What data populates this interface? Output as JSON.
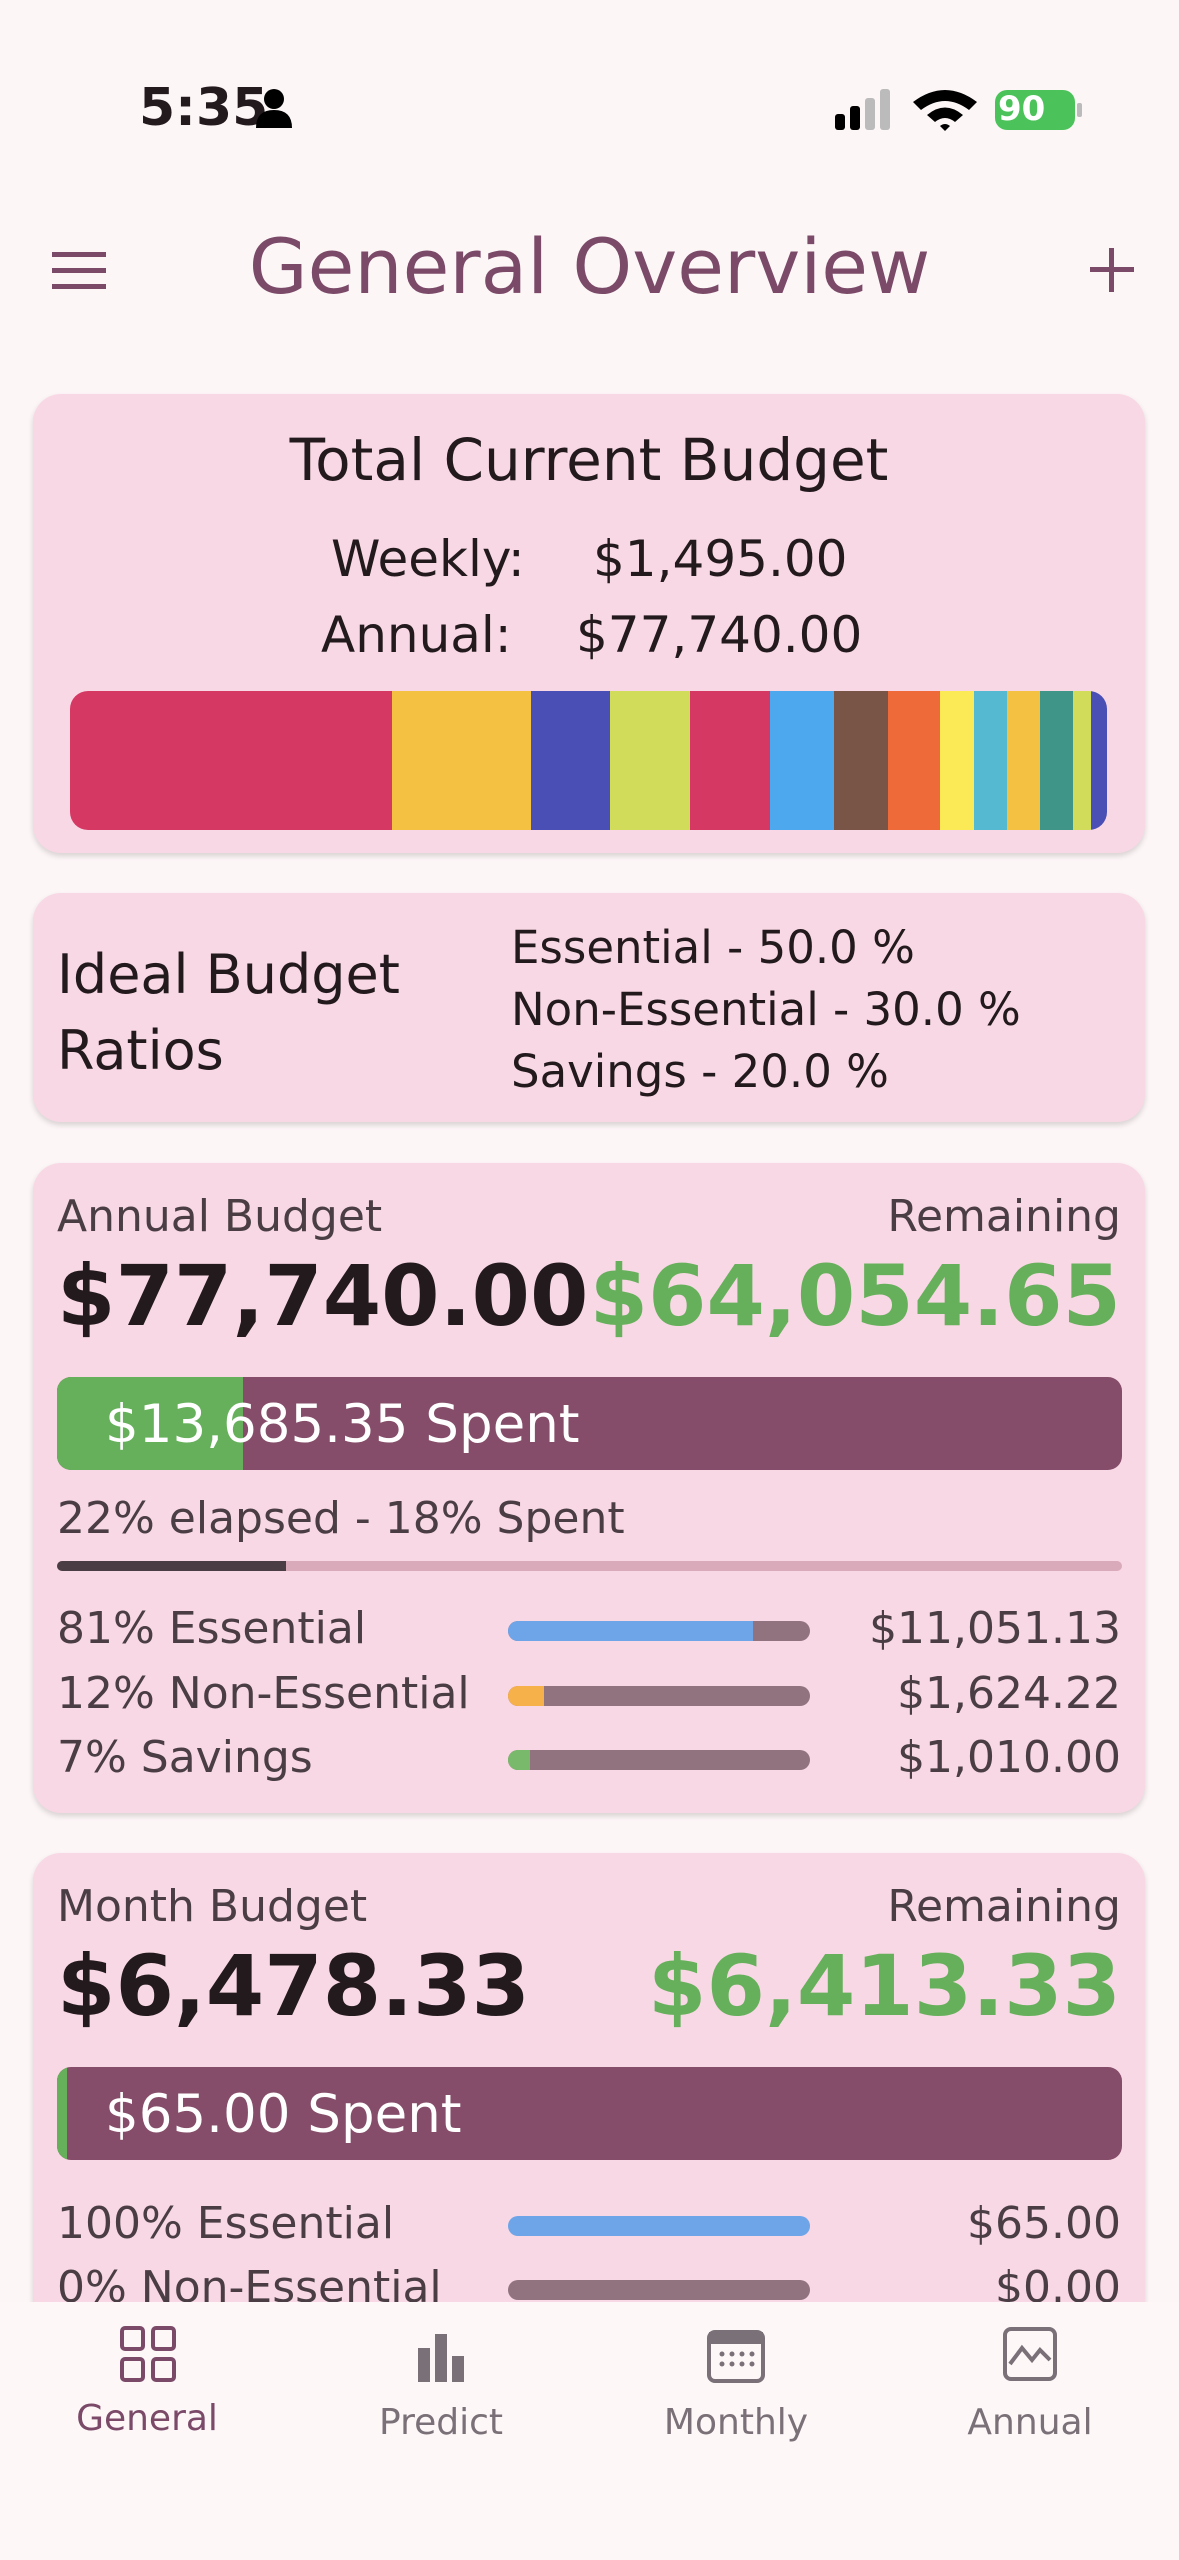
{
  "status_bar": {
    "time": "5:35",
    "battery": "90"
  },
  "app_bar": {
    "title": "General Overview"
  },
  "total_budget": {
    "title": "Total Current Budget",
    "weekly_label": "Weekly:",
    "weekly_value": "$1,495.00",
    "annual_label": "Annual:",
    "annual_value": "$77,740.00"
  },
  "ideal_ratios": {
    "title": "Ideal Budget Ratios",
    "lines": [
      "Essential - 50.0 %",
      "Non-Essential - 30.0 %",
      "Savings - 20.0 %"
    ]
  },
  "annual_budget": {
    "label": "Annual Budget",
    "amount": "$77,740.00",
    "remaining_label": "Remaining",
    "remaining": "$64,054.65",
    "spent": "$13,685.35 Spent",
    "progress_text": "22% elapsed - 18% Spent",
    "rows": [
      {
        "label": "81% Essential",
        "value": "$11,051.13"
      },
      {
        "label": "12% Non-Essential",
        "value": "$1,624.22"
      },
      {
        "label": "7% Savings",
        "value": "$1,010.00"
      }
    ]
  },
  "month_budget": {
    "label": "Month Budget",
    "amount": "$6,478.33",
    "remaining_label": "Remaining",
    "remaining": "$6,413.33",
    "spent": "$65.00 Spent",
    "rows": [
      {
        "label": "100% Essential",
        "value": "$65.00"
      },
      {
        "label": "0% Non-Essential",
        "value": "$0.00"
      }
    ]
  },
  "nav": [
    "General",
    "Predict",
    "Monthly",
    "Annual"
  ]
}
